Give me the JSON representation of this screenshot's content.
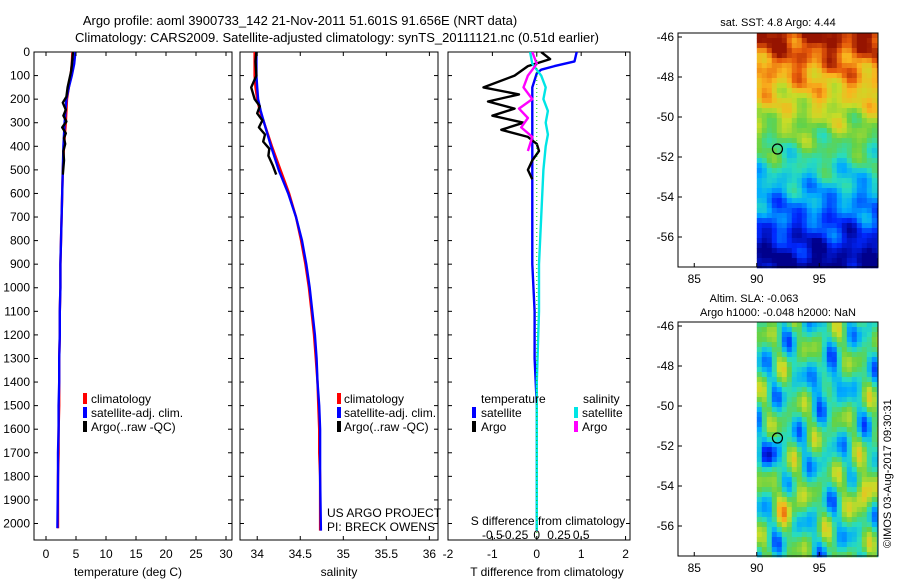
{
  "header": {
    "line1": "Argo profile: aoml 3900733_142 21-Nov-2011 51.601S 91.656E (NRT data)",
    "line2": "Climatology: CARS2009. Satellite-adjusted climatology: synTS_20111121.nc (0.51d earlier)"
  },
  "colors": {
    "climatology": "#ff0000",
    "satellite": "#0000ff",
    "argo": "#000000",
    "sal_satellite": "#00e5e5",
    "sal_argo": "#ff00ff",
    "zero_line": "#00cc00"
  },
  "chart_data": [
    {
      "id": "temperature",
      "type": "line",
      "xlabel": "temperature (deg C)",
      "ylabel": "",
      "xlim": [
        -2,
        31
      ],
      "ylim": [
        2070,
        0
      ],
      "x_ticks": [
        "0",
        "5",
        "10",
        "15",
        "20",
        "25",
        "30"
      ],
      "x_tick_values": [
        0,
        5,
        10,
        15,
        20,
        25,
        30
      ],
      "y_ticks": [
        "0",
        "100",
        "200",
        "300",
        "400",
        "500",
        "600",
        "700",
        "800",
        "900",
        "1000",
        "1100",
        "1200",
        "1300",
        "1400",
        "1500",
        "1600",
        "1700",
        "1800",
        "1900",
        "2000"
      ],
      "y_tick_values": [
        0,
        100,
        200,
        300,
        400,
        500,
        600,
        700,
        800,
        900,
        1000,
        1100,
        1200,
        1300,
        1400,
        1500,
        1600,
        1700,
        1800,
        1900,
        2000
      ],
      "legend": [
        "climatology",
        "satellite-adj. clim.",
        "Argo(..raw -QC)"
      ],
      "series": [
        {
          "name": "climatology",
          "color": "#ff0000",
          "x": [
            4.4,
            4.3,
            4.1,
            3.8,
            3.5,
            3.3,
            3.0,
            2.8,
            2.7,
            2.6,
            2.5,
            2.4,
            2.4,
            2.3,
            2.3,
            2.2,
            2.2,
            2.2,
            2.1,
            2.1,
            2.0,
            2.0
          ],
          "y": [
            0,
            50,
            100,
            150,
            200,
            300,
            400,
            500,
            600,
            700,
            800,
            900,
            1000,
            1100,
            1200,
            1300,
            1400,
            1500,
            1600,
            1700,
            1800,
            2020
          ]
        },
        {
          "name": "satellite-adj. clim.",
          "color": "#0000ff",
          "x": [
            4.9,
            4.7,
            4.3,
            3.8,
            3.4,
            3.1,
            2.9,
            2.8,
            2.7,
            2.6,
            2.5,
            2.4,
            2.4,
            2.3,
            2.3,
            2.2,
            2.2,
            2.1,
            2.1,
            2.0,
            2.0,
            1.9
          ],
          "y": [
            0,
            50,
            100,
            150,
            200,
            300,
            400,
            500,
            600,
            700,
            800,
            900,
            1000,
            1100,
            1200,
            1300,
            1400,
            1500,
            1600,
            1700,
            1800,
            2020
          ]
        },
        {
          "name": "Argo(..raw -QC)",
          "color": "#000000",
          "x": [
            4.5,
            4.4,
            4.2,
            3.6,
            3.4,
            2.8,
            3.3,
            2.9,
            3.4,
            2.7,
            3.3,
            3.0,
            3.2,
            2.9,
            3.0,
            2.8
          ],
          "y": [
            0,
            30,
            80,
            150,
            190,
            215,
            245,
            270,
            295,
            320,
            345,
            365,
            390,
            420,
            460,
            520
          ]
        }
      ]
    },
    {
      "id": "salinity",
      "type": "line",
      "xlabel": "salinity",
      "ylabel": "",
      "xlim": [
        33.8,
        36.1
      ],
      "ylim": [
        2070,
        0
      ],
      "x_ticks": [
        "34",
        "34.5",
        "35",
        "35.5",
        "36"
      ],
      "x_tick_values": [
        34,
        34.5,
        35,
        35.5,
        36
      ],
      "legend": [
        "climatology",
        "satellite-adj. clim.",
        "Argo(..raw -QC)"
      ],
      "annotation": [
        "US ARGO PROJECT",
        "PI: BRECK OWENS"
      ],
      "series": [
        {
          "name": "climatology",
          "color": "#ff0000",
          "x": [
            33.97,
            33.97,
            33.97,
            33.98,
            34.0,
            34.03,
            34.08,
            34.17,
            34.27,
            34.37,
            34.45,
            34.51,
            34.56,
            34.6,
            34.63,
            34.66,
            34.68,
            34.7,
            34.71,
            34.72,
            34.72,
            34.73,
            34.73
          ],
          "y": [
            0,
            50,
            100,
            150,
            200,
            250,
            300,
            400,
            500,
            600,
            700,
            800,
            900,
            1000,
            1100,
            1200,
            1300,
            1400,
            1500,
            1600,
            1700,
            1800,
            2030
          ]
        },
        {
          "name": "satellite-adj. clim.",
          "color": "#0000ff",
          "x": [
            33.99,
            33.99,
            33.99,
            34.0,
            34.01,
            34.04,
            34.08,
            34.16,
            34.25,
            34.36,
            34.45,
            34.52,
            34.57,
            34.61,
            34.64,
            34.67,
            34.69,
            34.7,
            34.72,
            34.73,
            34.73,
            34.73,
            34.74
          ],
          "y": [
            0,
            50,
            100,
            150,
            200,
            250,
            300,
            400,
            500,
            600,
            700,
            800,
            900,
            1000,
            1100,
            1200,
            1300,
            1400,
            1500,
            1600,
            1700,
            1800,
            2030
          ]
        },
        {
          "name": "Argo(..raw -QC)",
          "color": "#000000",
          "x": [
            33.99,
            33.98,
            33.99,
            33.93,
            33.97,
            34.03,
            34.0,
            34.06,
            34.02,
            34.09,
            34.07,
            34.14,
            34.13,
            34.18,
            34.22
          ],
          "y": [
            0,
            40,
            100,
            150,
            200,
            230,
            260,
            290,
            320,
            350,
            380,
            410,
            440,
            480,
            520
          ]
        }
      ]
    },
    {
      "id": "difference",
      "type": "line",
      "xlabel": "T difference from climatology",
      "xlabel_top": "S difference from climatology",
      "xlim": [
        -2,
        2.1
      ],
      "ylim": [
        2070,
        0
      ],
      "x_ticks": [
        "-2",
        "-1",
        "0",
        "1",
        "2"
      ],
      "x_tick_values": [
        -2,
        -1,
        0,
        1,
        2
      ],
      "s_ticks": [
        "-0.5",
        "-0.25",
        "0",
        "0.25",
        "0.5"
      ],
      "s_tick_values": [
        -0.5,
        -0.25,
        0,
        0.25,
        0.5
      ],
      "legend": {
        "temperature_title": "temperature",
        "salinity_title": "salinity",
        "temperature": [
          "satellite",
          "Argo"
        ],
        "salinity": [
          "satellite",
          "Argo"
        ]
      },
      "series": [
        {
          "name": "T satellite",
          "color": "#0000ff",
          "x": [
            0.9,
            0.85,
            0.4,
            0.1,
            0.0,
            -0.1,
            -0.1,
            -0.1,
            -0.1,
            -0.1,
            -0.1,
            -0.05,
            -0.05,
            0.0,
            0.0,
            0.0,
            0.0,
            0.0
          ],
          "y": [
            0,
            40,
            60,
            75,
            90,
            150,
            300,
            400,
            500,
            700,
            900,
            1100,
            1300,
            1500,
            1700,
            1900,
            2000,
            2030
          ]
        },
        {
          "name": "T Argo",
          "color": "#000000",
          "x": [
            0.1,
            0.3,
            -0.2,
            -0.5,
            -1.2,
            -0.4,
            -1.1,
            -0.5,
            -1.0,
            -0.3,
            -0.8,
            -0.2,
            0.0,
            0.05,
            -0.1,
            -0.2,
            -0.1
          ],
          "y": [
            0,
            30,
            60,
            100,
            150,
            180,
            210,
            240,
            270,
            300,
            330,
            360,
            390,
            420,
            460,
            500,
            540
          ]
        },
        {
          "name": "S satellite",
          "color": "#00e5e5",
          "x": [
            -0.15,
            -0.1,
            0.1,
            0.2,
            0.15,
            0.25,
            0.2,
            0.25,
            0.2,
            0.15,
            0.1,
            0.05,
            0.05,
            0.0,
            0.0,
            0.0
          ],
          "y": [
            0,
            50,
            100,
            150,
            200,
            250,
            300,
            350,
            400,
            500,
            700,
            900,
            1100,
            1400,
            1700,
            2030
          ]
        },
        {
          "name": "S Argo",
          "color": "#ff00ff",
          "x": [
            -0.1,
            0.0,
            -0.2,
            -0.3,
            -0.1,
            -0.4,
            -0.2,
            -0.35,
            -0.1,
            -0.2
          ],
          "y": [
            0,
            50,
            100,
            150,
            200,
            240,
            280,
            320,
            360,
            420
          ]
        }
      ]
    },
    {
      "id": "sst_map",
      "type": "heatmap",
      "title": "sat. SST: 4.8 Argo: 4.44",
      "x_ticks": [
        "85",
        "90",
        "95"
      ],
      "x_tick_values": [
        85,
        90,
        95
      ],
      "y_ticks": [
        "-46",
        "-48",
        "-50",
        "-52",
        "-54",
        "-56"
      ],
      "y_tick_values": [
        -46,
        -48,
        -50,
        -52,
        -54,
        -56
      ],
      "xlim": [
        83.7,
        99.7
      ],
      "ylim": [
        -57.5,
        -45.8
      ],
      "data_lon_range": [
        90,
        99.7
      ],
      "marker": {
        "lon": 91.656,
        "lat": -51.601
      }
    },
    {
      "id": "sla_map",
      "type": "heatmap",
      "title_line1": "Altim. SLA: -0.063",
      "title_line2": "Argo h1000: -0.048 h2000: NaN",
      "x_ticks": [
        "85",
        "90",
        "95"
      ],
      "x_tick_values": [
        85,
        90,
        95
      ],
      "y_ticks": [
        "-46",
        "-48",
        "-50",
        "-52",
        "-54",
        "-56"
      ],
      "y_tick_values": [
        -46,
        -48,
        -50,
        -52,
        -54,
        -56
      ],
      "xlim": [
        83.7,
        99.7
      ],
      "ylim": [
        -57.5,
        -45.8
      ],
      "data_lon_range": [
        90,
        99.7
      ],
      "marker": {
        "lon": 91.656,
        "lat": -51.601
      }
    }
  ],
  "watermark": "©IMOS 03-Aug-2017 09:30:31"
}
